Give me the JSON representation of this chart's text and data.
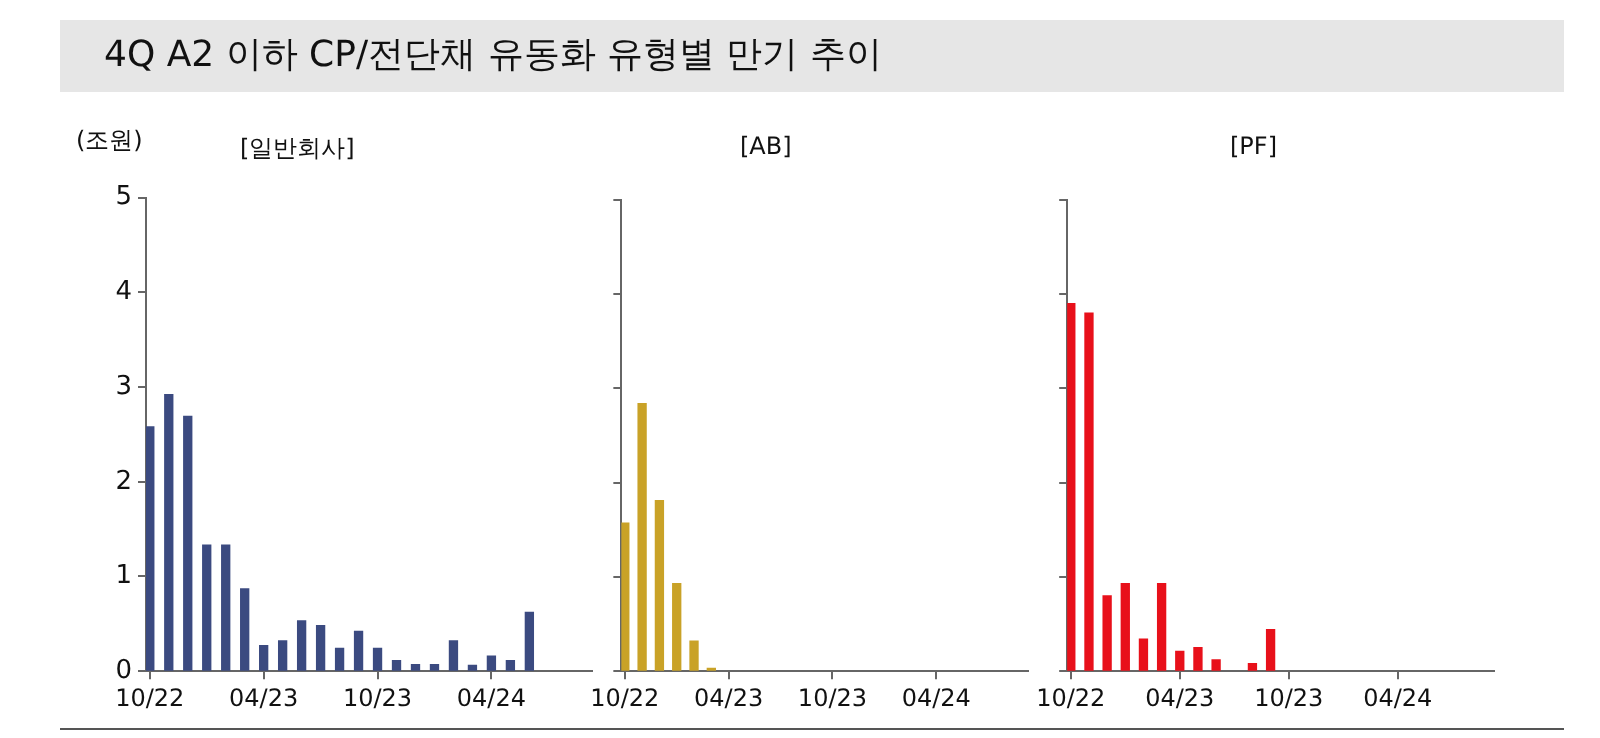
{
  "chart_data": [
    {
      "type": "bar",
      "title": "4Q A2 이하 CP/전단채 유동화 유형별 만기 추이",
      "subtitle": "[일반회사]",
      "ylabel": "(조원)",
      "x": [
        "2022-10",
        "2022-11",
        "2022-12",
        "2023-01",
        "2023-02",
        "2023-03",
        "2023-04",
        "2023-05",
        "2023-06",
        "2023-07",
        "2023-08",
        "2023-09",
        "2023-10",
        "2023-11",
        "2023-12",
        "2024-01",
        "2024-02",
        "2024-03",
        "2024-04",
        "2024-05",
        "2024-06"
      ],
      "values": [
        2.58,
        2.92,
        2.69,
        1.33,
        1.33,
        0.87,
        0.27,
        0.32,
        0.53,
        0.48,
        0.24,
        0.42,
        0.24,
        0.11,
        0.07,
        0.07,
        0.32,
        0.06,
        0.16,
        0.11,
        0.62
      ],
      "color": "#3b4a80",
      "xlim": [
        "2022-09-25",
        "2024-09-10"
      ],
      "xticks": [
        {
          "value": "2022-10",
          "label": "10/22"
        },
        {
          "value": "2023-04",
          "label": "04/23"
        },
        {
          "value": "2023-10",
          "label": "10/23"
        },
        {
          "value": "2024-04",
          "label": "04/24"
        }
      ],
      "ylim": [
        0,
        5
      ],
      "yticks": [
        0,
        1,
        2,
        3,
        4,
        5
      ],
      "grid": false,
      "legend": false
    },
    {
      "type": "bar",
      "subtitle": "[AB]",
      "x": [
        "2022-10",
        "2022-11",
        "2022-12",
        "2023-01",
        "2023-02",
        "2023-03"
      ],
      "values": [
        1.57,
        2.84,
        1.81,
        0.93,
        0.32,
        0.03
      ],
      "color": "#c9a227",
      "xlim": [
        "2022-09-25",
        "2024-09-10"
      ],
      "xticks": [
        {
          "value": "2022-10",
          "label": "10/22"
        },
        {
          "value": "2023-04",
          "label": "04/23"
        },
        {
          "value": "2023-10",
          "label": "10/23"
        },
        {
          "value": "2024-04",
          "label": "04/24"
        }
      ],
      "ylim": [
        0,
        5
      ],
      "yticks": [
        0,
        1,
        2,
        3,
        4,
        5
      ],
      "tick_labels": "x",
      "grid": false,
      "legend": false
    },
    {
      "type": "bar",
      "subtitle": "[PF]",
      "x": [
        "2022-10",
        "2022-11",
        "2022-12",
        "2023-01",
        "2023-02",
        "2023-03",
        "2023-04",
        "2023-05",
        "2023-06",
        "2023-08",
        "2023-09"
      ],
      "values": [
        3.9,
        3.8,
        0.8,
        0.93,
        0.34,
        0.93,
        0.21,
        0.25,
        0.12,
        0.08,
        0.44
      ],
      "color": "#e8101a",
      "xlim": [
        "2022-09-25",
        "2024-09-10"
      ],
      "xticks": [
        {
          "value": "2022-10",
          "label": "10/22"
        },
        {
          "value": "2023-04",
          "label": "04/23"
        },
        {
          "value": "2023-10",
          "label": "10/23"
        },
        {
          "value": "2024-04",
          "label": "04/24"
        }
      ],
      "ylim": [
        0,
        5
      ],
      "yticks": [
        0,
        1,
        2,
        3,
        4,
        5
      ],
      "tick_labels": "x",
      "grid": false,
      "legend": false
    }
  ]
}
